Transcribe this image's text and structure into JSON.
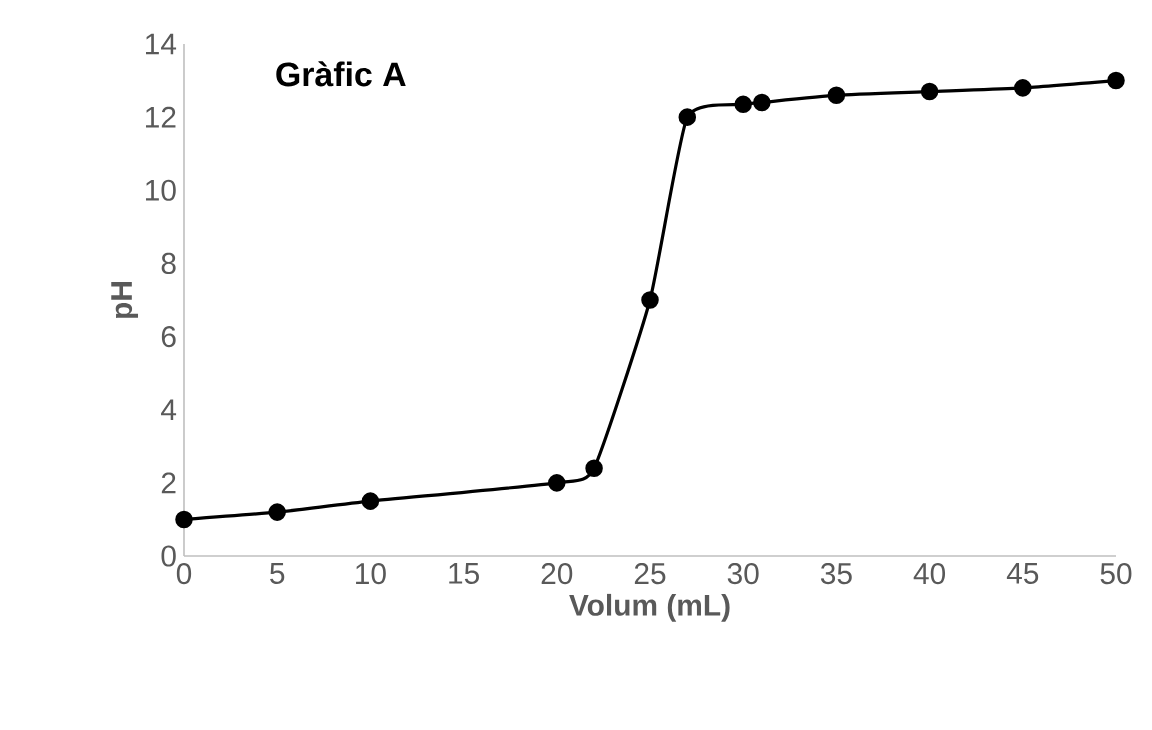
{
  "chart_data": {
    "type": "line",
    "title": "Gràfic A",
    "xlabel": "Volum (mL)",
    "ylabel": "pH",
    "x": [
      0,
      5,
      10,
      20,
      22,
      25,
      27,
      30,
      31,
      35,
      40,
      45,
      50
    ],
    "series": [
      {
        "color": "#000000",
        "values": [
          1,
          1.2,
          1.5,
          2,
          2.4,
          7,
          12,
          12.35,
          12.4,
          12.6,
          12.7,
          12.8,
          13
        ]
      }
    ],
    "xlim": [
      0,
      50
    ],
    "ylim": [
      0,
      14
    ],
    "xticks": [
      0,
      5,
      10,
      15,
      20,
      25,
      30,
      35,
      40,
      45,
      50
    ],
    "yticks": [
      0,
      2,
      4,
      6,
      8,
      10,
      12,
      14
    ],
    "marker": "circle",
    "line_style": "solid"
  }
}
